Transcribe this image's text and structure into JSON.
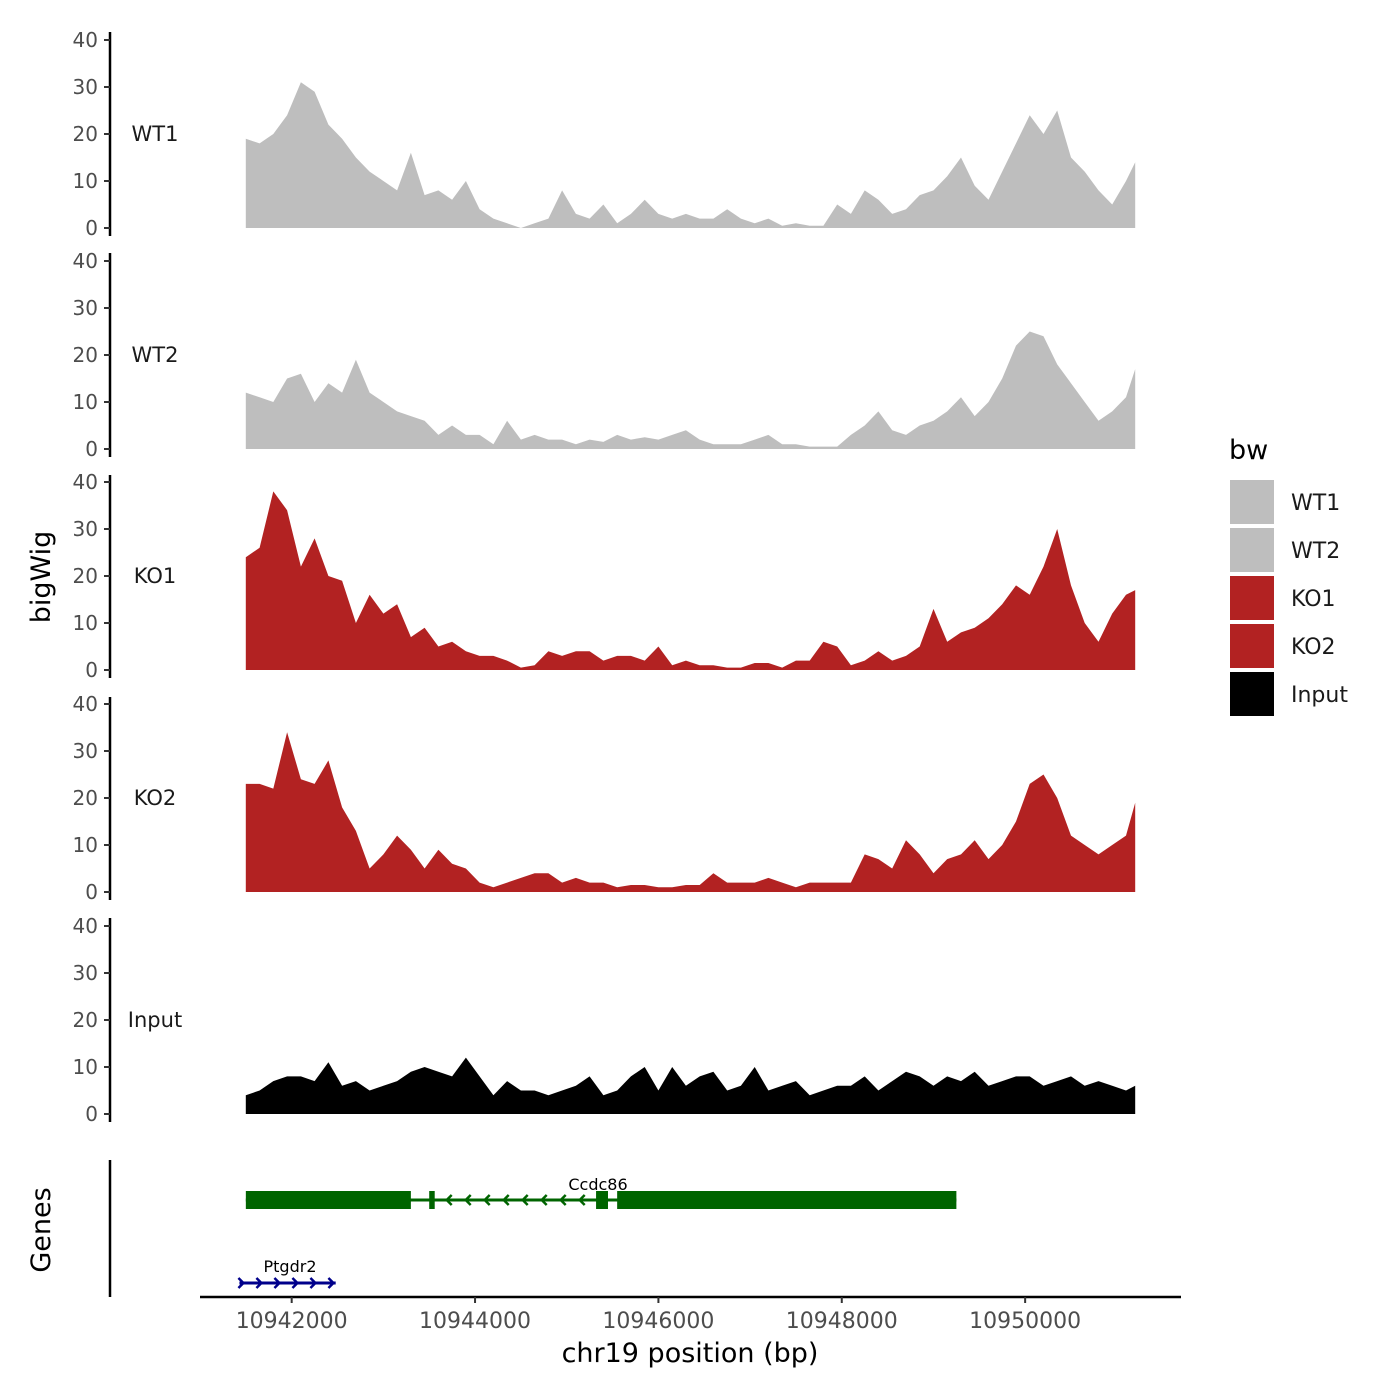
{
  "chart_data": {
    "type": "area",
    "title": "",
    "xlabel": "chr19 position (bp)",
    "ylabel": "bigWig",
    "genes_label": "Genes",
    "xlim": [
      10941000,
      10951700
    ],
    "x_ticks": [
      10942000,
      10944000,
      10946000,
      10948000,
      10950000
    ],
    "x_tick_labels": [
      "10942000",
      "10944000",
      "10946000",
      "10948000",
      "10950000"
    ],
    "ylim": [
      0,
      42
    ],
    "y_ticks": [
      0,
      10,
      20,
      30,
      40
    ],
    "y_tick_labels": [
      "0",
      "10",
      "20",
      "30",
      "40"
    ],
    "x_positions": [
      10941500,
      10941650,
      10941800,
      10941950,
      10942100,
      10942250,
      10942400,
      10942550,
      10942700,
      10942850,
      10943000,
      10943150,
      10943300,
      10943450,
      10943600,
      10943750,
      10943900,
      10944050,
      10944200,
      10944350,
      10944500,
      10944650,
      10944800,
      10944950,
      10945100,
      10945250,
      10945400,
      10945550,
      10945700,
      10945850,
      10946000,
      10946150,
      10946300,
      10946450,
      10946600,
      10946750,
      10946900,
      10947050,
      10947200,
      10947350,
      10947500,
      10947650,
      10947800,
      10947950,
      10948100,
      10948250,
      10948400,
      10948550,
      10948700,
      10948850,
      10949000,
      10949150,
      10949300,
      10949450,
      10949600,
      10949750,
      10949900,
      10950050,
      10950200,
      10950350,
      10950500,
      10950650,
      10950800,
      10950950,
      10951100,
      10951200
    ],
    "series": [
      {
        "name": "WT1",
        "color": "#bebebe",
        "values": [
          19,
          18,
          20,
          24,
          31,
          29,
          22,
          19,
          15,
          12,
          10,
          8,
          16,
          7,
          8,
          6,
          10,
          4,
          2,
          1,
          0,
          1,
          2,
          8,
          3,
          2,
          5,
          1,
          3,
          6,
          3,
          2,
          3,
          2,
          2,
          4,
          2,
          1,
          2,
          0.5,
          1,
          0.5,
          0.5,
          5,
          3,
          8,
          6,
          3,
          4,
          7,
          8,
          11,
          15,
          9,
          6,
          12,
          18,
          24,
          20,
          25,
          15,
          12,
          8,
          5,
          10,
          14
        ]
      },
      {
        "name": "WT2",
        "color": "#bebebe",
        "values": [
          12,
          11,
          10,
          15,
          16,
          10,
          14,
          12,
          19,
          12,
          10,
          8,
          7,
          6,
          3,
          5,
          3,
          3,
          1,
          6,
          2,
          3,
          2,
          2,
          1,
          2,
          1.5,
          3,
          2,
          2.5,
          2,
          3,
          4,
          2,
          1,
          1,
          1,
          2,
          3,
          1,
          1,
          0.5,
          0.5,
          0.5,
          3,
          5,
          8,
          4,
          3,
          5,
          6,
          8,
          11,
          7,
          10,
          15,
          22,
          25,
          24,
          18,
          14,
          10,
          6,
          8,
          11,
          17
        ]
      },
      {
        "name": "KO1",
        "color": "#b22222",
        "values": [
          24,
          26,
          38,
          34,
          22,
          28,
          20,
          19,
          10,
          16,
          12,
          14,
          7,
          9,
          5,
          6,
          4,
          3,
          3,
          2,
          0.5,
          1,
          4,
          3,
          4,
          4,
          2,
          3,
          3,
          2,
          5,
          1,
          2,
          1,
          1,
          0.5,
          0.5,
          1.5,
          1.5,
          0.5,
          2,
          2,
          6,
          5,
          1,
          2,
          4,
          2,
          3,
          5,
          13,
          6,
          8,
          9,
          11,
          14,
          18,
          16,
          22,
          30,
          18,
          10,
          6,
          12,
          16,
          17
        ]
      },
      {
        "name": "KO2",
        "color": "#b22222",
        "values": [
          23,
          23,
          22,
          34,
          24,
          23,
          28,
          18,
          13,
          5,
          8,
          12,
          9,
          5,
          9,
          6,
          5,
          2,
          1,
          2,
          3,
          4,
          4,
          2,
          3,
          2,
          2,
          1,
          1.5,
          1.5,
          1,
          1,
          1.5,
          1.5,
          4,
          2,
          2,
          2,
          3,
          2,
          1,
          2,
          2,
          2,
          2,
          8,
          7,
          5,
          11,
          8,
          4,
          7,
          8,
          11,
          7,
          10,
          15,
          23,
          25,
          20,
          12,
          10,
          8,
          10,
          12,
          19
        ]
      },
      {
        "name": "Input",
        "color": "#000000",
        "values": [
          4,
          5,
          7,
          8,
          8,
          7,
          11,
          6,
          7,
          5,
          6,
          7,
          9,
          10,
          9,
          8,
          12,
          8,
          4,
          7,
          5,
          5,
          4,
          5,
          6,
          8,
          4,
          5,
          8,
          10,
          5,
          10,
          6,
          8,
          9,
          5,
          6,
          10,
          5,
          6,
          7,
          4,
          5,
          6,
          6,
          8,
          5,
          7,
          9,
          8,
          6,
          8,
          7,
          9,
          6,
          7,
          8,
          8,
          6,
          7,
          8,
          6,
          7,
          6,
          5,
          6
        ]
      }
    ],
    "legend": {
      "title": "bw",
      "position": "right",
      "entries": [
        {
          "label": "WT1",
          "color": "#bebebe"
        },
        {
          "label": "WT2",
          "color": "#bebebe"
        },
        {
          "label": "KO1",
          "color": "#b22222"
        },
        {
          "label": "KO2",
          "color": "#b22222"
        },
        {
          "label": "Input",
          "color": "#000000"
        }
      ]
    },
    "genes": [
      {
        "name": "Ccdc86",
        "strand": "-",
        "color": "#006400",
        "start": 10941500,
        "end": 10949250,
        "exons": [
          [
            10941500,
            10943300
          ],
          [
            10943500,
            10943560
          ],
          [
            10945320,
            10945450
          ],
          [
            10945550,
            10949250
          ]
        ]
      },
      {
        "name": "Ptgdr2",
        "strand": "+",
        "color": "#00008b",
        "start": 10941430,
        "end": 10942480,
        "exons": []
      }
    ]
  }
}
